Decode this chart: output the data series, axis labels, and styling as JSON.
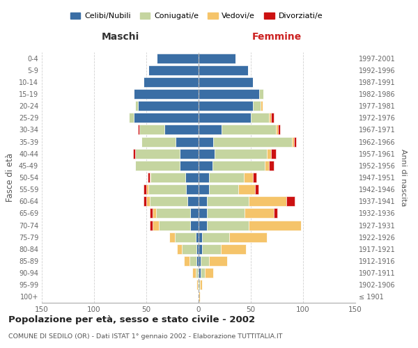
{
  "age_groups": [
    "100+",
    "95-99",
    "90-94",
    "85-89",
    "80-84",
    "75-79",
    "70-74",
    "65-69",
    "60-64",
    "55-59",
    "50-54",
    "45-49",
    "40-44",
    "35-39",
    "30-34",
    "25-29",
    "20-24",
    "15-19",
    "10-14",
    "5-9",
    "0-4"
  ],
  "birth_years": [
    "≤ 1901",
    "1902-1906",
    "1907-1911",
    "1912-1916",
    "1917-1921",
    "1922-1926",
    "1927-1931",
    "1932-1936",
    "1937-1941",
    "1942-1946",
    "1947-1951",
    "1952-1956",
    "1957-1961",
    "1962-1966",
    "1967-1971",
    "1972-1976",
    "1977-1981",
    "1982-1986",
    "1987-1991",
    "1992-1996",
    "1997-2001"
  ],
  "colors": {
    "celibi": "#3a6ea5",
    "coniugati": "#c5d5a0",
    "vedovi": "#f5c46a",
    "divorziati": "#cc1111"
  },
  "maschi": {
    "celibi": [
      0,
      0,
      1,
      2,
      2,
      3,
      8,
      8,
      11,
      12,
      13,
      18,
      18,
      22,
      33,
      62,
      58,
      62,
      53,
      48,
      40
    ],
    "coniugati": [
      0,
      1,
      2,
      7,
      14,
      20,
      30,
      33,
      36,
      36,
      33,
      43,
      43,
      33,
      24,
      5,
      3,
      0,
      0,
      0,
      0
    ],
    "vedovi": [
      0,
      1,
      3,
      5,
      5,
      5,
      6,
      3,
      3,
      2,
      1,
      0,
      0,
      0,
      0,
      0,
      0,
      0,
      0,
      0,
      0
    ],
    "divorziati": [
      0,
      0,
      0,
      0,
      0,
      0,
      3,
      3,
      3,
      3,
      2,
      0,
      2,
      0,
      1,
      0,
      0,
      0,
      0,
      0,
      0
    ]
  },
  "femmine": {
    "celibi": [
      0,
      0,
      2,
      2,
      3,
      3,
      8,
      8,
      8,
      10,
      10,
      13,
      15,
      14,
      22,
      50,
      52,
      58,
      52,
      47,
      35
    ],
    "coniugati": [
      0,
      1,
      4,
      8,
      18,
      26,
      40,
      36,
      40,
      28,
      33,
      50,
      50,
      75,
      52,
      17,
      7,
      4,
      0,
      0,
      0
    ],
    "vedovi": [
      1,
      2,
      8,
      17,
      24,
      36,
      50,
      28,
      36,
      16,
      9,
      4,
      4,
      2,
      2,
      2,
      2,
      0,
      0,
      0,
      0
    ],
    "divorziati": [
      0,
      0,
      0,
      0,
      0,
      0,
      0,
      3,
      8,
      3,
      3,
      5,
      5,
      2,
      2,
      3,
      0,
      0,
      0,
      0,
      0
    ]
  },
  "title": "Popolazione per età, sesso e stato civile - 2002",
  "subtitle": "COMUNE DI SEDILO (OR) - Dati ISTAT 1° gennaio 2002 - Elaborazione TUTTITALIA.IT",
  "xlabel_left": "Maschi",
  "xlabel_right": "Femmine",
  "ylabel_left": "Fasce di età",
  "ylabel_right": "Anni di nascita",
  "xlim": 150,
  "legend_labels": [
    "Celibi/Nubili",
    "Coniugati/e",
    "Vedovi/e",
    "Divorziati/e"
  ],
  "background_color": "#ffffff",
  "grid_color": "#cccccc"
}
